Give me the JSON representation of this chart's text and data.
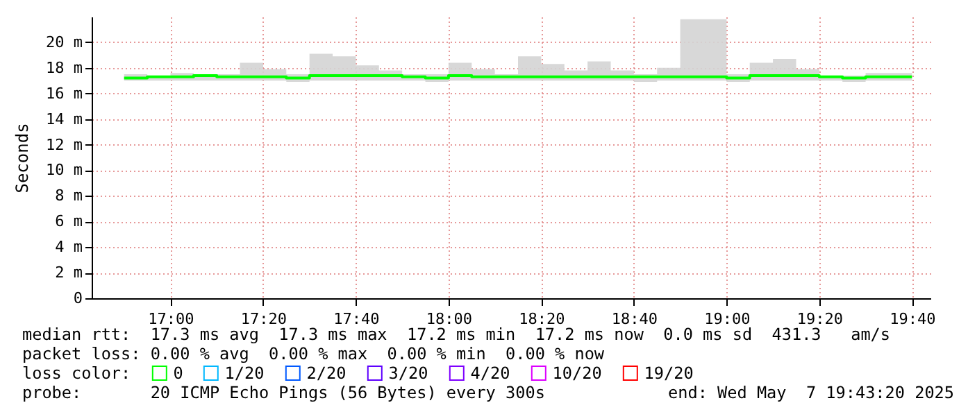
{
  "chart_data": {
    "type": "step",
    "ylabel": "Seconds",
    "x": [
      "2025-05-07T16:50",
      "2025-05-07T16:55",
      "2025-05-07T17:00",
      "2025-05-07T17:05",
      "2025-05-07T17:10",
      "2025-05-07T17:15",
      "2025-05-07T17:20",
      "2025-05-07T17:25",
      "2025-05-07T17:30",
      "2025-05-07T17:35",
      "2025-05-07T17:40",
      "2025-05-07T17:45",
      "2025-05-07T17:50",
      "2025-05-07T17:55",
      "2025-05-07T18:00",
      "2025-05-07T18:05",
      "2025-05-07T18:10",
      "2025-05-07T18:15",
      "2025-05-07T18:20",
      "2025-05-07T18:25",
      "2025-05-07T18:30",
      "2025-05-07T18:35",
      "2025-05-07T18:40",
      "2025-05-07T18:45",
      "2025-05-07T18:50",
      "2025-05-07T18:55",
      "2025-05-07T19:00",
      "2025-05-07T19:05",
      "2025-05-07T19:10",
      "2025-05-07T19:15",
      "2025-05-07T19:20",
      "2025-05-07T19:25",
      "2025-05-07T19:30",
      "2025-05-07T19:35",
      "2025-05-07T19:40"
    ],
    "series": [
      {
        "name": "0",
        "color": "#00ff00",
        "values": [
          17.2,
          17.2,
          17.3,
          17.3,
          17.4,
          17.3,
          17.3,
          17.3,
          17.2,
          17.4,
          17.4,
          17.4,
          17.4,
          17.3,
          17.2,
          17.4,
          17.3,
          17.3,
          17.3,
          17.3,
          17.3,
          17.3,
          17.3,
          17.3,
          17.3,
          17.3,
          17.3,
          17.2,
          17.4,
          17.4,
          17.4,
          17.3,
          17.2,
          17.3,
          17.3
        ],
        "lower": [
          17.0,
          17.0,
          17.0,
          17.0,
          17.0,
          17.0,
          17.0,
          17.0,
          16.9,
          17.0,
          17.0,
          17.0,
          17.0,
          17.0,
          16.9,
          17.0,
          17.0,
          17.0,
          17.0,
          17.0,
          17.0,
          17.0,
          17.0,
          16.9,
          17.0,
          17.0,
          17.0,
          16.9,
          17.0,
          17.0,
          17.0,
          17.0,
          16.9,
          17.0,
          17.0
        ],
        "upper": [
          17.9,
          17.5,
          17.4,
          17.6,
          17.5,
          17.5,
          18.4,
          17.9,
          17.5,
          19.1,
          18.9,
          18.2,
          17.8,
          17.5,
          17.5,
          18.4,
          17.9,
          17.5,
          18.9,
          18.3,
          17.8,
          18.5,
          17.8,
          17.5,
          18.0,
          21.8,
          21.8,
          17.5,
          18.4,
          18.7,
          17.9,
          17.4,
          17.4,
          17.6,
          17.6
        ]
      },
      {
        "name": "1/20",
        "color": "#00b8ff",
        "values": [
          null,
          null,
          null,
          null,
          null,
          null,
          null,
          null,
          null,
          null,
          null,
          null,
          null,
          null,
          null,
          null,
          null,
          null,
          null,
          null,
          null,
          null,
          null,
          null,
          null,
          null,
          null,
          null,
          null,
          null,
          null,
          null,
          null,
          null,
          null
        ]
      },
      {
        "name": "2/20",
        "color": "#0059ff",
        "values": [
          null,
          null,
          null,
          null,
          null,
          null,
          null,
          null,
          null,
          null,
          null,
          null,
          null,
          null,
          null,
          null,
          null,
          null,
          null,
          null,
          null,
          null,
          null,
          null,
          null,
          null,
          null,
          null,
          null,
          null,
          null,
          null,
          null,
          null,
          null
        ]
      },
      {
        "name": "3/20",
        "color": "#5e00ff",
        "values": [
          null,
          null,
          null,
          null,
          null,
          null,
          null,
          null,
          null,
          null,
          null,
          null,
          null,
          null,
          null,
          null,
          null,
          null,
          null,
          null,
          null,
          null,
          null,
          null,
          null,
          null,
          null,
          null,
          null,
          null,
          null,
          null,
          null,
          null,
          null
        ]
      },
      {
        "name": "4/20",
        "color": "#7e00ff",
        "values": [
          null,
          null,
          null,
          null,
          null,
          null,
          null,
          null,
          null,
          null,
          null,
          null,
          null,
          null,
          null,
          null,
          null,
          null,
          null,
          null,
          null,
          null,
          null,
          null,
          null,
          null,
          null,
          null,
          null,
          null,
          null,
          null,
          null,
          null,
          null
        ]
      },
      {
        "name": "10/20",
        "color": "#dd00ff",
        "values": [
          null,
          null,
          null,
          null,
          null,
          null,
          null,
          null,
          null,
          null,
          null,
          null,
          null,
          null,
          null,
          null,
          null,
          null,
          null,
          null,
          null,
          null,
          null,
          null,
          null,
          null,
          null,
          null,
          null,
          null,
          null,
          null,
          null,
          null,
          null
        ]
      },
      {
        "name": "19/20",
        "color": "#ff0000",
        "values": [
          null,
          null,
          null,
          null,
          null,
          null,
          null,
          null,
          null,
          null,
          null,
          null,
          null,
          null,
          null,
          null,
          null,
          null,
          null,
          null,
          null,
          null,
          null,
          null,
          null,
          null,
          null,
          null,
          null,
          null,
          null,
          null,
          null,
          null,
          null
        ]
      }
    ],
    "legend_title": "loss color:",
    "legend": "bottom",
    "xlim": [
      "2025-05-07T16:43",
      "2025-05-07T19:44"
    ],
    "xticks": [
      {
        "value": "2025-05-07T17:00",
        "label": "17:00"
      },
      {
        "value": "2025-05-07T17:20",
        "label": "17:20"
      },
      {
        "value": "2025-05-07T17:40",
        "label": "17:40"
      },
      {
        "value": "2025-05-07T18:00",
        "label": "18:00"
      },
      {
        "value": "2025-05-07T18:20",
        "label": "18:20"
      },
      {
        "value": "2025-05-07T18:40",
        "label": "18:40"
      },
      {
        "value": "2025-05-07T19:00",
        "label": "19:00"
      },
      {
        "value": "2025-05-07T19:20",
        "label": "19:20"
      },
      {
        "value": "2025-05-07T19:40",
        "label": "19:40"
      }
    ],
    "ylim": [
      0,
      22
    ],
    "yticks": [
      0,
      {
        "value": 2,
        "label": "2 m"
      },
      {
        "value": 4,
        "label": "4 m"
      },
      {
        "value": 6,
        "label": "6 m"
      },
      {
        "value": 8,
        "label": "8 m"
      },
      {
        "value": 10,
        "label": "10 m"
      },
      {
        "value": 12,
        "label": "12 m"
      },
      {
        "value": 14,
        "label": "14 m"
      },
      {
        "value": 16,
        "label": "16 m"
      },
      {
        "value": 18,
        "label": "18 m"
      },
      {
        "value": 20,
        "label": "20 m"
      }
    ],
    "grid": true,
    "annotations": [
      "median rtt:  17.3 ms avg  17.3 ms max  17.2 ms min  17.2 ms now  0.0 ms sd  431.3   am/s",
      "packet loss: 0.00 % avg  0.00 % max  0.00 % min  0.00 % now",
      "probe:       20 ICMP Echo Pings (56 Bytes) every 300s",
      "end: Wed May  7 19:43:20 2025"
    ]
  }
}
